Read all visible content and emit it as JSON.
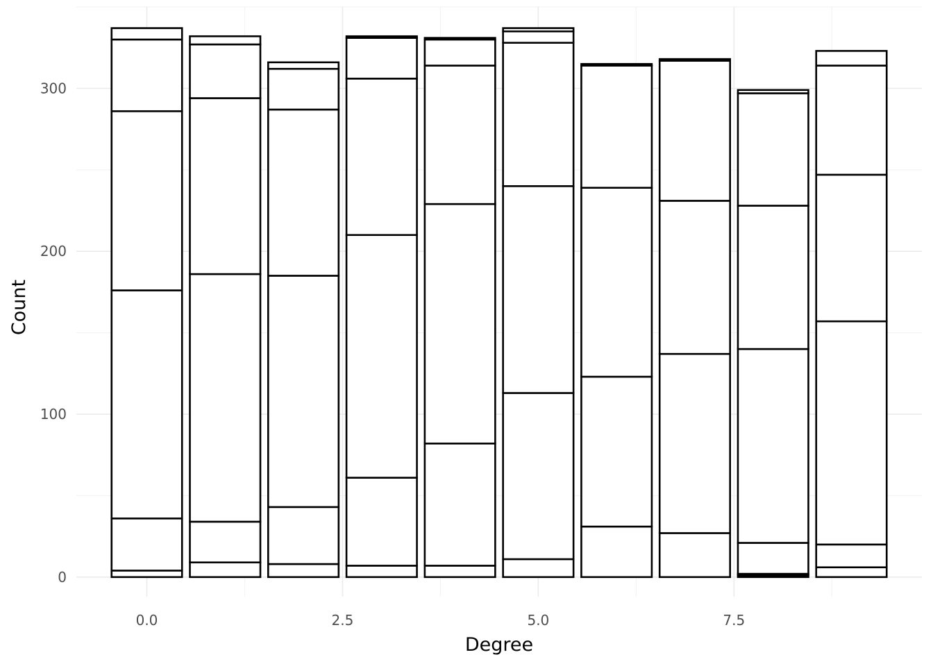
{
  "chart_data": {
    "type": "bar",
    "stacked": true,
    "xlabel": "Degree",
    "ylabel": "Count",
    "xlim": [
      -0.9,
      9.9
    ],
    "ylim": [
      -12,
      350
    ],
    "x_ticks": [
      0.0,
      2.5,
      5.0,
      7.5
    ],
    "x_tick_labels": [
      "0.0",
      "2.5",
      "5.0",
      "7.5"
    ],
    "y_ticks": [
      0,
      100,
      200,
      300
    ],
    "y_tick_labels": [
      "0",
      "100",
      "200",
      "300"
    ],
    "grid": true,
    "legend": "none",
    "bar_fill": "#ffffff",
    "bar_outline": "#000000",
    "bar_width": 0.9,
    "categories": [
      0,
      1,
      2,
      3,
      4,
      5,
      6,
      7,
      8,
      9
    ],
    "stack_boundaries": [
      [
        0,
        4,
        36,
        176,
        286,
        330,
        337
      ],
      [
        0,
        9,
        34,
        186,
        294,
        327,
        332
      ],
      [
        0,
        8,
        43,
        185,
        287,
        312,
        316
      ],
      [
        0,
        7,
        61,
        210,
        306,
        331,
        332
      ],
      [
        0,
        7,
        82,
        229,
        314,
        330,
        331
      ],
      [
        0,
        11,
        113,
        240,
        328,
        335,
        337
      ],
      [
        0,
        31,
        123,
        239,
        314,
        315
      ],
      [
        0,
        27,
        137,
        231,
        317,
        318
      ],
      [
        0,
        1,
        2,
        21,
        140,
        228,
        297,
        299
      ],
      [
        0,
        6,
        20,
        157,
        247,
        314,
        323
      ]
    ]
  }
}
